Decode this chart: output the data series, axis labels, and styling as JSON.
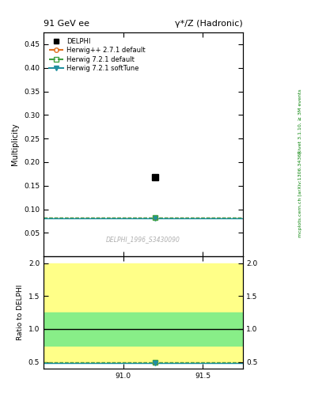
{
  "title_left": "91 GeV ee",
  "title_right": "γ*/Z (Hadronic)",
  "ylabel_main": "Multiplicity",
  "ylabel_ratio": "Ratio to DELPHI",
  "watermark": "DELPHI_1996_S3430090",
  "right_label_top": "Rivet 3.1.10, ≥ 3M events",
  "right_label_bottom": "mcplots.cern.ch [arXiv:1306.3436]",
  "xlim": [
    90.5,
    91.75
  ],
  "xticks": [
    91.0,
    91.5
  ],
  "ylim_main": [
    0.0,
    0.475
  ],
  "yticks_main": [
    0.05,
    0.1,
    0.15,
    0.2,
    0.25,
    0.3,
    0.35,
    0.4,
    0.45
  ],
  "ylim_ratio": [
    0.4,
    2.1
  ],
  "yticks_ratio": [
    0.5,
    1.0,
    1.5,
    2.0
  ],
  "data_x": 91.2,
  "data_y": 0.168,
  "data_color": "#000000",
  "data_label": "DELPHI",
  "herwig_x": 91.2,
  "line_herwig1_y": 0.083,
  "line_herwig2_y": 0.083,
  "line_herwig3_y": 0.081,
  "herwig1_color": "#e07020",
  "herwig2_color": "#40a040",
  "herwig3_color": "#2090a0",
  "herwig1_label": "Herwig++ 2.7.1 default",
  "herwig2_label": "Herwig 7.2.1 default",
  "herwig3_label": "Herwig 7.2.1 softTune",
  "ratio_herwig1_y": 0.495,
  "ratio_herwig2_y": 0.495,
  "ratio_herwig3_y": 0.485,
  "band_green_low": 0.75,
  "band_green_high": 1.25,
  "band_yellow_low": 0.5,
  "band_yellow_high": 2.0,
  "ratio_line_y": 1.0,
  "bg_color": "#ffffff"
}
